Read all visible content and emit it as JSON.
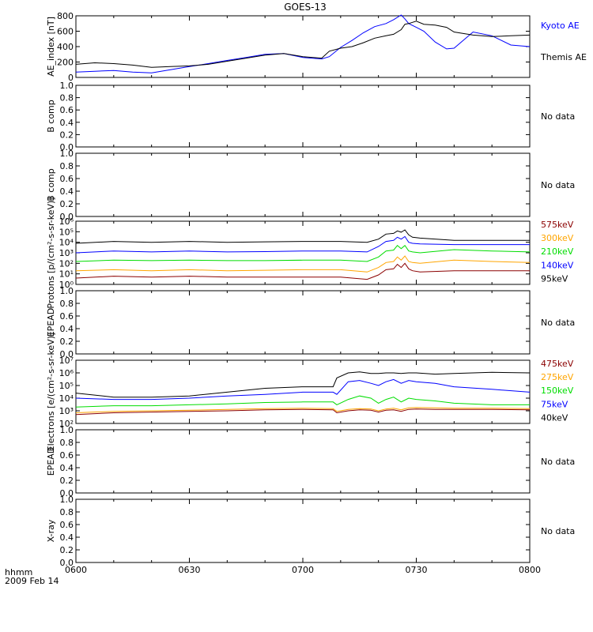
{
  "title": "GOES-13",
  "time_axis": {
    "ticks": [
      "0600",
      "0630",
      "0700",
      "0730",
      "0800"
    ],
    "unit_label": "hhmm",
    "date_label": "2009 Feb 14"
  },
  "chart_data": [
    {
      "type": "line",
      "ylabel": "AE_index [nT]",
      "ylim": [
        0,
        800
      ],
      "yticks": [
        "0",
        "200",
        "400",
        "600",
        "800"
      ],
      "x": [
        "0600",
        "0605",
        "0610",
        "0615",
        "0620",
        "0625",
        "0630",
        "0635",
        "0640",
        "0645",
        "0650",
        "0655",
        "0700",
        "0705",
        "0707",
        "0710",
        "0713",
        "0716",
        "0719",
        "0722",
        "0724",
        "0726",
        "0727",
        "0728",
        "0730",
        "0732",
        "0735",
        "0738",
        "0740",
        "0745",
        "0750",
        "0755",
        "0800"
      ],
      "series": [
        {
          "name": "Kyoto AE",
          "color": "#0000ff",
          "values": [
            70,
            80,
            90,
            70,
            60,
            100,
            140,
            180,
            220,
            260,
            300,
            310,
            260,
            240,
            270,
            390,
            480,
            580,
            660,
            700,
            750,
            810,
            760,
            700,
            650,
            600,
            460,
            370,
            380,
            590,
            540,
            420,
            400
          ]
        },
        {
          "name": "Themis AE",
          "color": "#000000",
          "values": [
            170,
            190,
            180,
            160,
            130,
            140,
            150,
            170,
            210,
            250,
            290,
            310,
            270,
            250,
            340,
            380,
            400,
            450,
            510,
            540,
            560,
            620,
            690,
            700,
            730,
            690,
            680,
            650,
            590,
            550,
            530,
            540,
            550
          ]
        }
      ]
    },
    {
      "type": "line",
      "ylabel": "B comp",
      "ylim": [
        0,
        1
      ],
      "yticks": [
        "0.0",
        "0.2",
        "0.4",
        "0.6",
        "0.8",
        "1.0"
      ],
      "status": "No data"
    },
    {
      "type": "line",
      "ylabel": "B comp",
      "ylim": [
        0,
        1
      ],
      "yticks": [
        "0.0",
        "0.2",
        "0.4",
        "0.6",
        "0.8",
        "1.0"
      ],
      "status": "No data"
    },
    {
      "type": "line",
      "ylabel": "Protons [p/(cm²-s-sr-keV)]",
      "log_scale": true,
      "ylim": [
        1,
        1000000
      ],
      "yticks": [
        "10⁰",
        "10¹",
        "10²",
        "10³",
        "10⁴",
        "10⁵",
        "10⁶"
      ],
      "x": [
        "0600",
        "0610",
        "0620",
        "0630",
        "0640",
        "0650",
        "0700",
        "0710",
        "0717",
        "0720",
        "0722",
        "0724",
        "0725",
        "0726",
        "0727",
        "0728",
        "0729",
        "0731",
        "0740",
        "0750",
        "0800"
      ],
      "series": [
        {
          "name": "575keV",
          "color": "#8b0000",
          "values": [
            4,
            6,
            5,
            6,
            5,
            5,
            5,
            5,
            3,
            8,
            25,
            30,
            80,
            40,
            100,
            30,
            20,
            15,
            20,
            20,
            20
          ]
        },
        {
          "name": "300keV",
          "color": "#ffa500",
          "values": [
            20,
            25,
            20,
            25,
            20,
            22,
            25,
            25,
            15,
            40,
            120,
            150,
            400,
            200,
            500,
            150,
            120,
            100,
            200,
            150,
            120
          ]
        },
        {
          "name": "210keV",
          "color": "#00dd00",
          "values": [
            150,
            200,
            180,
            200,
            180,
            180,
            200,
            200,
            150,
            400,
            1500,
            1800,
            5000,
            2500,
            5000,
            1500,
            1200,
            1000,
            2000,
            1500,
            1200
          ]
        },
        {
          "name": "140keV",
          "color": "#0000ff",
          "values": [
            1000,
            1500,
            1200,
            1500,
            1200,
            1300,
            1500,
            1500,
            1200,
            4000,
            12000,
            15000,
            30000,
            20000,
            35000,
            10000,
            8000,
            7000,
            6000,
            6000,
            6000
          ]
        },
        {
          "name": "95keV",
          "color": "#000000",
          "values": [
            8000,
            12000,
            10000,
            12000,
            10000,
            11000,
            12000,
            12000,
            10000,
            20000,
            60000,
            70000,
            120000,
            90000,
            150000,
            50000,
            30000,
            25000,
            15000,
            15000,
            15000
          ]
        }
      ]
    },
    {
      "type": "line",
      "ylabel": "EPEAD",
      "ylim": [
        0,
        1
      ],
      "yticks": [
        "0.0",
        "0.2",
        "0.4",
        "0.6",
        "0.8",
        "1.0"
      ],
      "status": "No data"
    },
    {
      "type": "line",
      "ylabel": "Electrons [e/(cm²-s-sr-keV)]",
      "log_scale": true,
      "ylim": [
        100,
        10000000
      ],
      "yticks": [
        "10²",
        "10³",
        "10⁴",
        "10⁵",
        "10⁶",
        "10⁷"
      ],
      "x": [
        "0600",
        "0610",
        "0620",
        "0630",
        "0640",
        "0650",
        "0700",
        "0708",
        "0709",
        "0712",
        "0715",
        "0718",
        "0720",
        "0722",
        "0724",
        "0726",
        "0728",
        "0730",
        "0735",
        "0740",
        "0750",
        "0800"
      ],
      "series": [
        {
          "name": "475keV",
          "color": "#8b0000",
          "values": [
            500,
            700,
            800,
            900,
            1000,
            1200,
            1300,
            1200,
            700,
            1000,
            1200,
            1100,
            800,
            1100,
            1200,
            900,
            1300,
            1400,
            1300,
            1300,
            1300,
            1200
          ]
        },
        {
          "name": "275keV",
          "color": "#ffa500",
          "values": [
            700,
            900,
            1000,
            1100,
            1300,
            1500,
            1600,
            1500,
            900,
            1300,
            1500,
            1400,
            1000,
            1400,
            1600,
            1200,
            1700,
            1800,
            1700,
            1600,
            1600,
            1500
          ]
        },
        {
          "name": "150keV",
          "color": "#00dd00",
          "values": [
            2000,
            2500,
            2500,
            3000,
            3500,
            4500,
            5000,
            5000,
            3000,
            8000,
            15000,
            10000,
            4000,
            8000,
            12000,
            5000,
            10000,
            8000,
            6000,
            4000,
            3000,
            3000
          ]
        },
        {
          "name": "75keV",
          "color": "#0000ff",
          "values": [
            10000,
            8000,
            8000,
            10000,
            15000,
            20000,
            30000,
            30000,
            20000,
            200000,
            250000,
            150000,
            100000,
            200000,
            300000,
            150000,
            250000,
            200000,
            150000,
            80000,
            50000,
            30000
          ]
        },
        {
          "name": "40keV",
          "color": "#000000",
          "values": [
            25000,
            12000,
            12000,
            15000,
            30000,
            60000,
            80000,
            80000,
            400000,
            1000000,
            1200000,
            900000,
            900000,
            1000000,
            1000000,
            900000,
            1000000,
            1000000,
            800000,
            900000,
            1100000,
            1000000
          ]
        }
      ]
    },
    {
      "type": "line",
      "ylabel": "EPEAD",
      "ylim": [
        0,
        1
      ],
      "yticks": [
        "0.0",
        "0.2",
        "0.4",
        "0.6",
        "0.8",
        "1.0"
      ],
      "status": "No data"
    },
    {
      "type": "line",
      "ylabel": "X-ray",
      "ylim": [
        0,
        1
      ],
      "yticks": [
        "0.0",
        "0.2",
        "0.4",
        "0.6",
        "0.8",
        "1.0"
      ],
      "status": "No data"
    }
  ]
}
